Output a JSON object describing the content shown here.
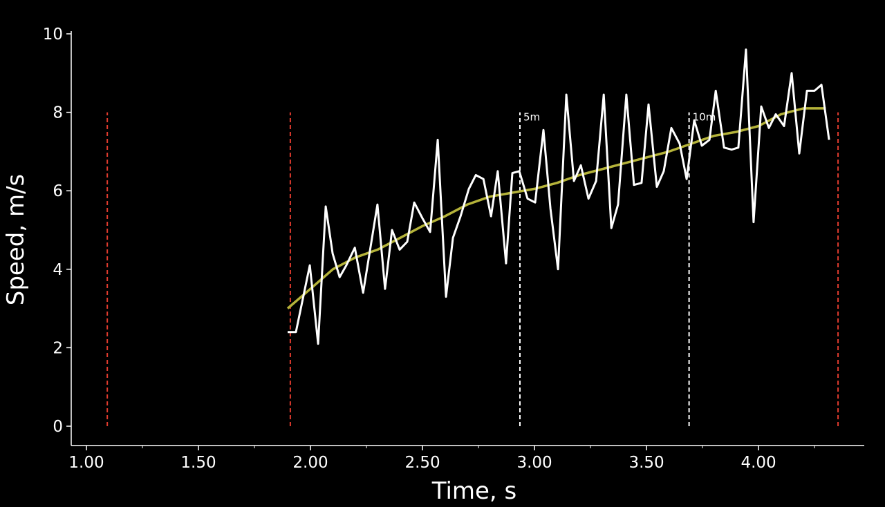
{
  "chart_data": {
    "type": "line",
    "xlabel": "Time, s",
    "ylabel": "Speed, m/s",
    "xlim": [
      0.932,
      4.472
    ],
    "ylim": [
      -0.493,
      10
    ],
    "xticks": [
      {
        "value": 1.0,
        "label": "1.00"
      },
      {
        "value": 1.5,
        "label": "1.50"
      },
      {
        "value": 2.0,
        "label": "2.00"
      },
      {
        "value": 2.5,
        "label": "2.50"
      },
      {
        "value": 3.0,
        "label": "3.00"
      },
      {
        "value": 3.5,
        "label": "3.50"
      },
      {
        "value": 4.0,
        "label": "4.00"
      }
    ],
    "xminorticks": [
      1.25,
      1.75,
      2.25,
      2.75,
      3.25,
      3.75,
      4.25
    ],
    "yticks": [
      0,
      2,
      4,
      6,
      8,
      10
    ],
    "grid": false,
    "series": [
      {
        "color": "#ffffff",
        "x": [
          1.898,
          1.935,
          1.997,
          2.034,
          2.068,
          2.099,
          2.13,
          2.16,
          2.198,
          2.235,
          2.299,
          2.333,
          2.364,
          2.398,
          2.432,
          2.463,
          2.5,
          2.534,
          2.568,
          2.605,
          2.636,
          2.67,
          2.707,
          2.738,
          2.772,
          2.806,
          2.836,
          2.873,
          2.901,
          2.932,
          2.969,
          3.003,
          3.04,
          3.071,
          3.105,
          3.142,
          3.176,
          3.207,
          3.241,
          3.275,
          3.309,
          3.343,
          3.373,
          3.41,
          3.444,
          3.478,
          3.509,
          3.546,
          3.577,
          3.611,
          3.648,
          3.679,
          3.713,
          3.747,
          3.781,
          3.809,
          3.846,
          3.88,
          3.91,
          3.944,
          3.978,
          4.012,
          4.046,
          4.077,
          4.114,
          4.148,
          4.182,
          4.216,
          4.25,
          4.281,
          4.315
        ],
        "values": [
          2.4,
          2.4,
          4.1,
          2.1,
          5.6,
          4.4,
          3.8,
          4.1,
          4.55,
          3.4,
          5.65,
          3.5,
          5.0,
          4.5,
          4.7,
          5.7,
          5.3,
          4.95,
          7.3,
          3.3,
          4.8,
          5.35,
          6.05,
          6.4,
          6.3,
          5.35,
          6.5,
          4.15,
          6.45,
          6.5,
          5.8,
          5.7,
          7.55,
          5.55,
          4.0,
          8.45,
          6.25,
          6.65,
          5.8,
          6.25,
          8.45,
          5.05,
          5.65,
          8.45,
          6.15,
          6.2,
          8.2,
          6.1,
          6.5,
          7.6,
          7.2,
          6.3,
          7.8,
          7.15,
          7.3,
          8.55,
          7.1,
          7.05,
          7.1,
          9.6,
          5.2,
          8.15,
          7.6,
          7.95,
          7.65,
          9.0,
          6.95,
          8.55,
          8.55,
          8.7,
          7.3
        ]
      },
      {
        "color": "#b5b33a",
        "x": [
          1.898,
          2.0,
          2.1,
          2.2,
          2.3,
          2.4,
          2.5,
          2.6,
          2.7,
          2.8,
          2.9,
          3.0,
          3.1,
          3.2,
          3.3,
          3.4,
          3.5,
          3.6,
          3.7,
          3.8,
          3.9,
          4.0,
          4.1,
          4.2,
          4.3
        ],
        "values": [
          3.0,
          3.5,
          4.0,
          4.3,
          4.5,
          4.8,
          5.1,
          5.35,
          5.65,
          5.85,
          5.95,
          6.05,
          6.2,
          6.4,
          6.55,
          6.7,
          6.85,
          7.0,
          7.2,
          7.4,
          7.5,
          7.65,
          7.95,
          8.1,
          8.1
        ]
      }
    ],
    "vlines": [
      {
        "x": 1.093,
        "ymin": 0,
        "ymax": 8,
        "color": "#e03b2e"
      },
      {
        "x": 1.91,
        "ymin": 0,
        "ymax": 8,
        "color": "#e03b2e"
      },
      {
        "x": 2.935,
        "ymin": 0,
        "ymax": 8,
        "color": "#ffffff",
        "label": "5m"
      },
      {
        "x": 3.69,
        "ymin": 0,
        "ymax": 8,
        "color": "#ffffff",
        "label": "10m"
      },
      {
        "x": 4.355,
        "ymin": 0,
        "ymax": 8,
        "color": "#e03b2e"
      }
    ]
  }
}
